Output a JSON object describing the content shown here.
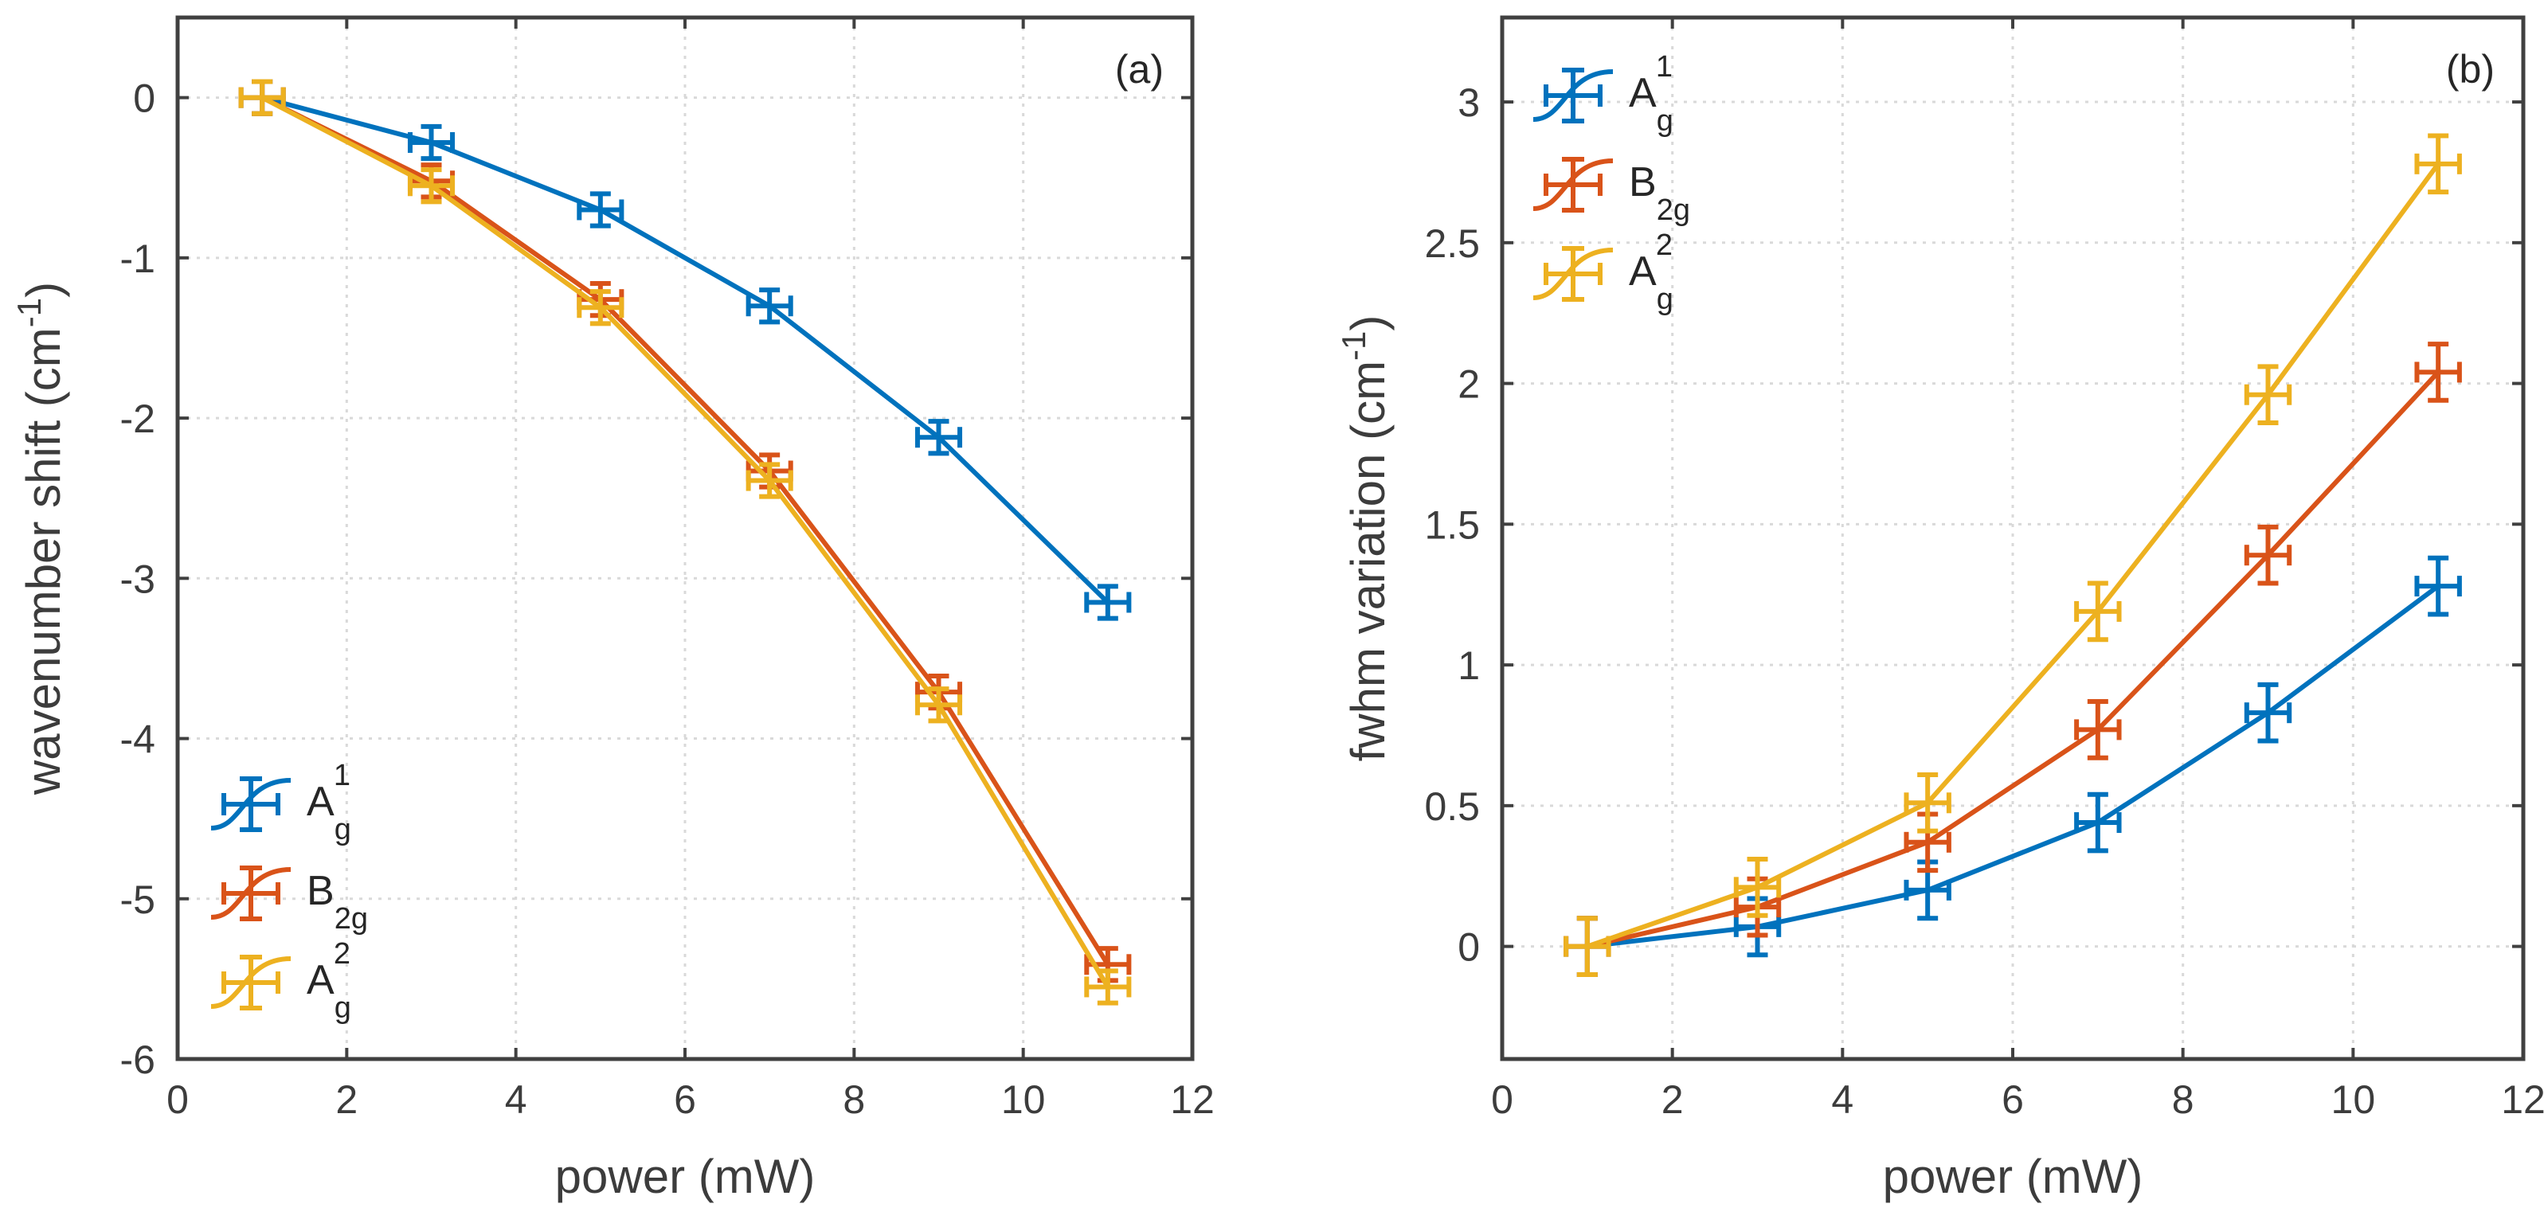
{
  "colors": {
    "axis": "#404040",
    "grid": "#d9d9d9",
    "series": [
      "#0072BD",
      "#D95319",
      "#EDB120"
    ]
  },
  "chart_data": [
    {
      "type": "line",
      "panel_label": "(a)",
      "xlabel": "power (mW)",
      "ylabel": {
        "main": "wavenumber shift (cm",
        "sup": "-1",
        "close": ")"
      },
      "xlim": [
        0,
        12
      ],
      "ylim": [
        -6,
        0.5
      ],
      "xticks": [
        0,
        2,
        4,
        6,
        8,
        10,
        12
      ],
      "yticks": [
        0,
        -1,
        -2,
        -3,
        -4,
        -5,
        -6
      ],
      "grid": true,
      "legend_position": "bottom-left",
      "x": [
        1,
        3,
        5,
        7,
        9,
        11
      ],
      "series": [
        {
          "name": "A",
          "sub": "g",
          "sup": "1",
          "values": [
            0,
            -0.28,
            -0.7,
            -1.3,
            -2.12,
            -3.15
          ],
          "yerr": 0.1,
          "xerr": 0.25
        },
        {
          "name": "B",
          "sub": "2g",
          "sup": "",
          "values": [
            0,
            -0.52,
            -1.26,
            -2.33,
            -3.71,
            -5.41
          ],
          "yerr": 0.1,
          "xerr": 0.25
        },
        {
          "name": "A",
          "sub": "g",
          "sup": "2",
          "values": [
            0,
            -0.55,
            -1.31,
            -2.39,
            -3.79,
            -5.55
          ],
          "yerr": 0.1,
          "xerr": 0.25
        }
      ]
    },
    {
      "type": "line",
      "panel_label": "(b)",
      "xlabel": "power (mW)",
      "ylabel": {
        "main": "fwhm variation (cm",
        "sup": "-1",
        "close": ")"
      },
      "xlim": [
        0,
        12
      ],
      "ylim": [
        -0.4,
        3.3
      ],
      "xticks": [
        0,
        2,
        4,
        6,
        8,
        10,
        12
      ],
      "yticks": [
        0,
        0.5,
        1,
        1.5,
        2,
        2.5,
        3
      ],
      "grid": true,
      "legend_position": "top-left",
      "x": [
        1,
        3,
        5,
        7,
        9,
        11
      ],
      "series": [
        {
          "name": "A",
          "sub": "g",
          "sup": "1",
          "values": [
            0,
            0.07,
            0.2,
            0.44,
            0.83,
            1.28
          ],
          "yerr": 0.1,
          "xerr": 0.25
        },
        {
          "name": "B",
          "sub": "2g",
          "sup": "",
          "values": [
            0,
            0.14,
            0.37,
            0.77,
            1.39,
            2.04
          ],
          "yerr": 0.1,
          "xerr": 0.25
        },
        {
          "name": "A",
          "sub": "g",
          "sup": "2",
          "values": [
            0,
            0.21,
            0.51,
            1.19,
            1.96,
            2.78
          ],
          "yerr": 0.1,
          "xerr": 0.25
        }
      ]
    }
  ]
}
